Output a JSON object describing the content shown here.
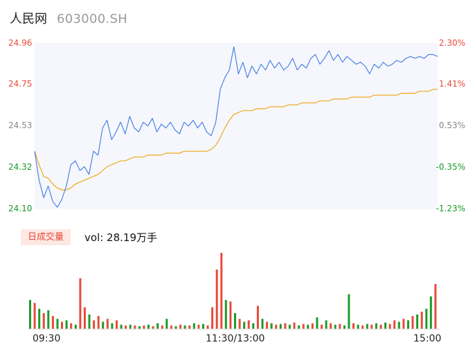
{
  "header": {
    "name": "人民网",
    "code": "603000.SH"
  },
  "price_axis": {
    "left_ticks": [
      "24.96",
      "24.75",
      "24.53",
      "24.32",
      "24.10"
    ],
    "right_ticks": [
      "2.30%",
      "1.41%",
      "0.53%",
      "-0.35%",
      "-1.23%"
    ],
    "tick_colors": [
      "#e84a3a",
      "#e84a3a",
      "#888888",
      "#1a9a2a",
      "#1a9a2a"
    ]
  },
  "volume": {
    "badge": "日成交量",
    "summary": "vol: 28.19万手"
  },
  "time_axis": {
    "labels": [
      "09:30",
      "11:30/13:00",
      "15:00"
    ]
  },
  "colors": {
    "price_line": "#3d78e3",
    "avg_line": "#f0a81c",
    "area_fill": "#f5f7fc",
    "up": "#e84a3a",
    "down": "#1a9a2a"
  },
  "chart_data": {
    "type": "line",
    "x_range": [
      "09:30",
      "15:00"
    ],
    "ylim": [
      24.1,
      24.96
    ],
    "pct_lim": [
      -1.23,
      2.3
    ],
    "series": [
      {
        "key": "price",
        "values": [
          24.4,
          24.25,
          24.16,
          24.22,
          24.14,
          24.11,
          24.15,
          24.22,
          24.33,
          24.35,
          24.3,
          24.32,
          24.28,
          24.4,
          24.38,
          24.52,
          24.56,
          24.46,
          24.5,
          24.55,
          24.49,
          24.58,
          24.52,
          24.5,
          24.55,
          24.53,
          24.57,
          24.5,
          24.54,
          24.52,
          24.55,
          24.51,
          24.49,
          24.55,
          24.53,
          24.56,
          24.52,
          24.55,
          24.5,
          24.48,
          24.55,
          24.72,
          24.78,
          24.82,
          24.94,
          24.8,
          24.86,
          24.78,
          24.84,
          24.8,
          24.85,
          24.82,
          24.87,
          24.83,
          24.86,
          24.82,
          24.84,
          24.88,
          24.82,
          24.85,
          24.83,
          24.88,
          24.9,
          24.85,
          24.88,
          24.92,
          24.87,
          24.9,
          24.86,
          24.89,
          24.87,
          24.85,
          24.86,
          24.84,
          24.8,
          24.85,
          24.83,
          24.86,
          24.84,
          24.85,
          24.87,
          24.86,
          24.88,
          24.89,
          24.88,
          24.89,
          24.88,
          24.9,
          24.9,
          24.89
        ]
      },
      {
        "key": "avg",
        "values": [
          24.4,
          24.33,
          24.27,
          24.26,
          24.23,
          24.21,
          24.2,
          24.2,
          24.21,
          24.23,
          24.24,
          24.25,
          24.26,
          24.27,
          24.28,
          24.3,
          24.32,
          24.33,
          24.34,
          24.35,
          24.35,
          24.36,
          24.37,
          24.37,
          24.37,
          24.38,
          24.38,
          24.38,
          24.38,
          24.39,
          24.39,
          24.39,
          24.39,
          24.4,
          24.4,
          24.4,
          24.4,
          24.4,
          24.4,
          24.41,
          24.43,
          24.47,
          24.52,
          24.56,
          24.59,
          24.6,
          24.61,
          24.61,
          24.61,
          24.62,
          24.62,
          24.62,
          24.63,
          24.63,
          24.63,
          24.63,
          24.64,
          24.64,
          24.64,
          24.65,
          24.65,
          24.65,
          24.65,
          24.66,
          24.66,
          24.66,
          24.67,
          24.67,
          24.67,
          24.67,
          24.68,
          24.68,
          24.68,
          24.68,
          24.68,
          24.69,
          24.69,
          24.69,
          24.69,
          24.69,
          24.69,
          24.7,
          24.7,
          24.7,
          24.7,
          24.71,
          24.71,
          24.71,
          24.72,
          24.72
        ]
      }
    ],
    "volume_bars": [
      {
        "v": 40,
        "up": 0
      },
      {
        "v": 36,
        "up": 1
      },
      {
        "v": 28,
        "up": 0
      },
      {
        "v": 22,
        "up": 1
      },
      {
        "v": 26,
        "up": 0
      },
      {
        "v": 18,
        "up": 1
      },
      {
        "v": 14,
        "up": 0
      },
      {
        "v": 10,
        "up": 1
      },
      {
        "v": 12,
        "up": 0
      },
      {
        "v": 8,
        "up": 1
      },
      {
        "v": 6,
        "up": 0
      },
      {
        "v": 70,
        "up": 1
      },
      {
        "v": 30,
        "up": 1
      },
      {
        "v": 20,
        "up": 0
      },
      {
        "v": 12,
        "up": 1
      },
      {
        "v": 18,
        "up": 1
      },
      {
        "v": 10,
        "up": 0
      },
      {
        "v": 14,
        "up": 1
      },
      {
        "v": 8,
        "up": 0
      },
      {
        "v": 12,
        "up": 1
      },
      {
        "v": 6,
        "up": 0
      },
      {
        "v": 5,
        "up": 1
      },
      {
        "v": 6,
        "up": 0
      },
      {
        "v": 5,
        "up": 1
      },
      {
        "v": 4,
        "up": 0
      },
      {
        "v": 5,
        "up": 1
      },
      {
        "v": 6,
        "up": 0
      },
      {
        "v": 4,
        "up": 1
      },
      {
        "v": 8,
        "up": 0
      },
      {
        "v": 5,
        "up": 1
      },
      {
        "v": 14,
        "up": 0
      },
      {
        "v": 5,
        "up": 1
      },
      {
        "v": 4,
        "up": 0
      },
      {
        "v": 6,
        "up": 1
      },
      {
        "v": 5,
        "up": 0
      },
      {
        "v": 5,
        "up": 1
      },
      {
        "v": 8,
        "up": 0
      },
      {
        "v": 6,
        "up": 1
      },
      {
        "v": 7,
        "up": 0
      },
      {
        "v": 5,
        "up": 1
      },
      {
        "v": 30,
        "up": 1
      },
      {
        "v": 82,
        "up": 1
      },
      {
        "v": 105,
        "up": 1
      },
      {
        "v": 40,
        "up": 0
      },
      {
        "v": 38,
        "up": 1
      },
      {
        "v": 22,
        "up": 0
      },
      {
        "v": 14,
        "up": 1
      },
      {
        "v": 10,
        "up": 0
      },
      {
        "v": 12,
        "up": 1
      },
      {
        "v": 8,
        "up": 0
      },
      {
        "v": 32,
        "up": 1
      },
      {
        "v": 14,
        "up": 0
      },
      {
        "v": 10,
        "up": 1
      },
      {
        "v": 8,
        "up": 0
      },
      {
        "v": 6,
        "up": 1
      },
      {
        "v": 7,
        "up": 0
      },
      {
        "v": 8,
        "up": 1
      },
      {
        "v": 6,
        "up": 0
      },
      {
        "v": 9,
        "up": 1
      },
      {
        "v": 5,
        "up": 0
      },
      {
        "v": 7,
        "up": 1
      },
      {
        "v": 6,
        "up": 0
      },
      {
        "v": 8,
        "up": 1
      },
      {
        "v": 16,
        "up": 0
      },
      {
        "v": 6,
        "up": 1
      },
      {
        "v": 12,
        "up": 0
      },
      {
        "v": 8,
        "up": 1
      },
      {
        "v": 6,
        "up": 0
      },
      {
        "v": 7,
        "up": 1
      },
      {
        "v": 5,
        "up": 0
      },
      {
        "v": 48,
        "up": 0
      },
      {
        "v": 8,
        "up": 1
      },
      {
        "v": 6,
        "up": 0
      },
      {
        "v": 5,
        "up": 1
      },
      {
        "v": 7,
        "up": 0
      },
      {
        "v": 6,
        "up": 1
      },
      {
        "v": 8,
        "up": 0
      },
      {
        "v": 6,
        "up": 1
      },
      {
        "v": 9,
        "up": 0
      },
      {
        "v": 7,
        "up": 1
      },
      {
        "v": 12,
        "up": 1
      },
      {
        "v": 10,
        "up": 0
      },
      {
        "v": 14,
        "up": 1
      },
      {
        "v": 12,
        "up": 0
      },
      {
        "v": 18,
        "up": 1
      },
      {
        "v": 20,
        "up": 0
      },
      {
        "v": 24,
        "up": 1
      },
      {
        "v": 28,
        "up": 0
      },
      {
        "v": 45,
        "up": 0
      },
      {
        "v": 62,
        "up": 1
      }
    ]
  }
}
